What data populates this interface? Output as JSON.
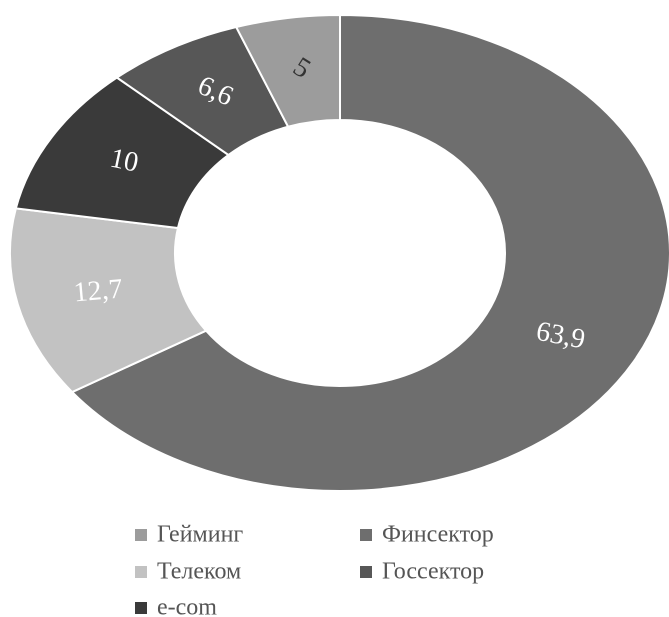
{
  "chart_data": {
    "type": "donut",
    "categories": [
      "Финсектор",
      "Телеком",
      "e-com",
      "Госсектор",
      "Гейминг"
    ],
    "values": [
      63.9,
      12.7,
      10,
      6.6,
      5
    ],
    "value_labels": [
      "63,9",
      "12,7",
      "10",
      "6,6",
      "5"
    ],
    "colors": [
      "#6e6e6e",
      "#c2c2c2",
      "#3a3a3a",
      "#575757",
      "#9c9c9c"
    ],
    "legend": true
  }
}
